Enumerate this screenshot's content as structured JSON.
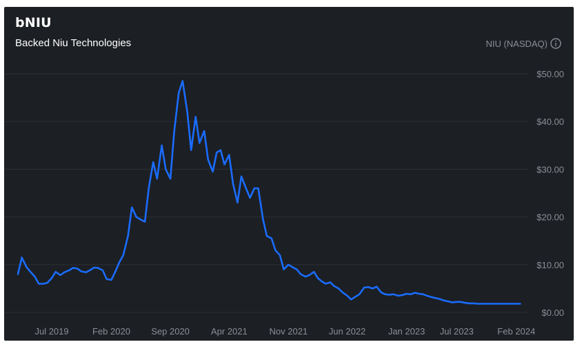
{
  "header": {
    "title": "bNIU",
    "subtitle": "Backed Niu Technologies",
    "ticker": "NIU (NASDAQ)",
    "info_icon": "info-circle-icon"
  },
  "colors": {
    "background": "#1c1f23",
    "line": "#1a6cff",
    "grid": "#2c3036",
    "muted_text": "#8b8f96"
  },
  "chart_data": {
    "type": "line",
    "title": "bNIU",
    "subtitle": "Backed Niu Technologies",
    "xlabel": "",
    "ylabel": "",
    "ylim": [
      0,
      50
    ],
    "y_ticks": [
      "$0.00",
      "$10.00",
      "$20.00",
      "$30.00",
      "$40.00",
      "$50.00"
    ],
    "y_tick_values": [
      0,
      10,
      20,
      30,
      40,
      50
    ],
    "x_tick_labels": [
      "Jul 2019",
      "Feb 2020",
      "Sep 2020",
      "Apr 2021",
      "Nov 2021",
      "Jun 2022",
      "Jan 2023",
      "Jul 2023",
      "Feb 2024"
    ],
    "x_tick_dates": [
      "2019-07-01",
      "2020-02-01",
      "2020-09-01",
      "2021-04-01",
      "2021-11-01",
      "2022-06-01",
      "2023-01-01",
      "2023-07-01",
      "2024-02-01"
    ],
    "grid": "horizontal",
    "axis_position": "right",
    "series": [
      {
        "x": [
          "2019-03-01",
          "2019-03-15",
          "2019-04-01",
          "2019-04-15",
          "2019-05-01",
          "2019-05-15",
          "2019-06-01",
          "2019-06-15",
          "2019-07-01",
          "2019-07-15",
          "2019-08-01",
          "2019-08-15",
          "2019-09-01",
          "2019-09-15",
          "2019-10-01",
          "2019-10-15",
          "2019-11-01",
          "2019-11-15",
          "2019-12-01",
          "2019-12-15",
          "2020-01-01",
          "2020-01-15",
          "2020-02-01",
          "2020-02-15",
          "2020-03-01",
          "2020-03-15",
          "2020-04-01",
          "2020-04-15",
          "2020-05-01",
          "2020-05-15",
          "2020-06-01",
          "2020-06-15",
          "2020-07-01",
          "2020-07-15",
          "2020-08-01",
          "2020-08-15",
          "2020-09-01",
          "2020-09-15",
          "2020-10-01",
          "2020-10-15",
          "2020-11-01",
          "2020-11-15",
          "2020-12-01",
          "2020-12-15",
          "2021-01-01",
          "2021-01-15",
          "2021-02-01",
          "2021-02-15",
          "2021-03-01",
          "2021-03-15",
          "2021-04-01",
          "2021-04-15",
          "2021-05-01",
          "2021-05-15",
          "2021-06-01",
          "2021-06-15",
          "2021-07-01",
          "2021-07-15",
          "2021-08-01",
          "2021-08-15",
          "2021-09-01",
          "2021-09-15",
          "2021-10-01",
          "2021-10-15",
          "2021-11-01",
          "2021-11-15",
          "2021-12-01",
          "2021-12-15",
          "2022-01-01",
          "2022-01-15",
          "2022-02-01",
          "2022-02-15",
          "2022-03-01",
          "2022-03-15",
          "2022-04-01",
          "2022-04-15",
          "2022-05-01",
          "2022-05-15",
          "2022-06-01",
          "2022-06-15",
          "2022-07-01",
          "2022-07-15",
          "2022-08-01",
          "2022-08-15",
          "2022-09-01",
          "2022-09-15",
          "2022-10-01",
          "2022-10-15",
          "2022-11-01",
          "2022-11-15",
          "2022-12-01",
          "2022-12-15",
          "2023-01-01",
          "2023-01-15",
          "2023-02-01",
          "2023-02-15",
          "2023-03-01",
          "2023-03-15",
          "2023-04-01",
          "2023-04-15",
          "2023-05-01",
          "2023-05-15",
          "2023-06-01",
          "2023-06-15",
          "2023-07-01",
          "2023-07-15",
          "2023-08-01",
          "2023-08-15",
          "2023-09-01",
          "2023-09-15",
          "2023-10-01",
          "2023-10-15",
          "2023-11-01",
          "2023-11-15",
          "2023-12-01",
          "2023-12-15",
          "2024-01-01",
          "2024-01-15",
          "2024-02-01",
          "2024-02-15"
        ],
        "values": [
          8.0,
          11.5,
          9.5,
          8.5,
          7.5,
          6.0,
          6.0,
          6.2,
          7.2,
          8.5,
          7.8,
          8.4,
          8.8,
          9.3,
          9.2,
          8.6,
          8.4,
          8.8,
          9.4,
          9.3,
          8.8,
          7.0,
          6.8,
          8.5,
          10.5,
          12.0,
          16.0,
          22.0,
          20.0,
          19.5,
          19.0,
          26.0,
          31.5,
          28.0,
          35.0,
          30.0,
          28.0,
          38.0,
          46.0,
          48.5,
          42.0,
          34.0,
          41.0,
          35.5,
          38.0,
          32.0,
          29.5,
          33.5,
          34.0,
          31.0,
          33.0,
          27.0,
          23.0,
          28.5,
          26.0,
          24.0,
          26.0,
          26.0,
          19.5,
          16.0,
          15.5,
          13.0,
          12.0,
          9.0,
          10.0,
          9.5,
          9.0,
          8.0,
          7.5,
          7.8,
          8.5,
          7.2,
          6.5,
          6.0,
          6.3,
          5.5,
          5.0,
          4.2,
          3.5,
          2.7,
          3.3,
          3.8,
          5.2,
          5.3,
          5.0,
          5.4,
          4.2,
          3.8,
          3.7,
          3.8,
          3.5,
          3.6,
          3.9,
          3.8,
          4.1,
          3.9,
          3.8,
          3.5,
          3.2,
          3.0,
          2.8,
          2.5,
          2.3,
          2.1,
          2.2,
          2.2,
          2.0,
          1.9,
          1.9,
          1.8,
          1.8,
          1.8,
          1.8,
          1.8,
          1.8,
          1.8,
          1.8,
          1.8,
          1.8,
          1.8
        ]
      }
    ]
  }
}
